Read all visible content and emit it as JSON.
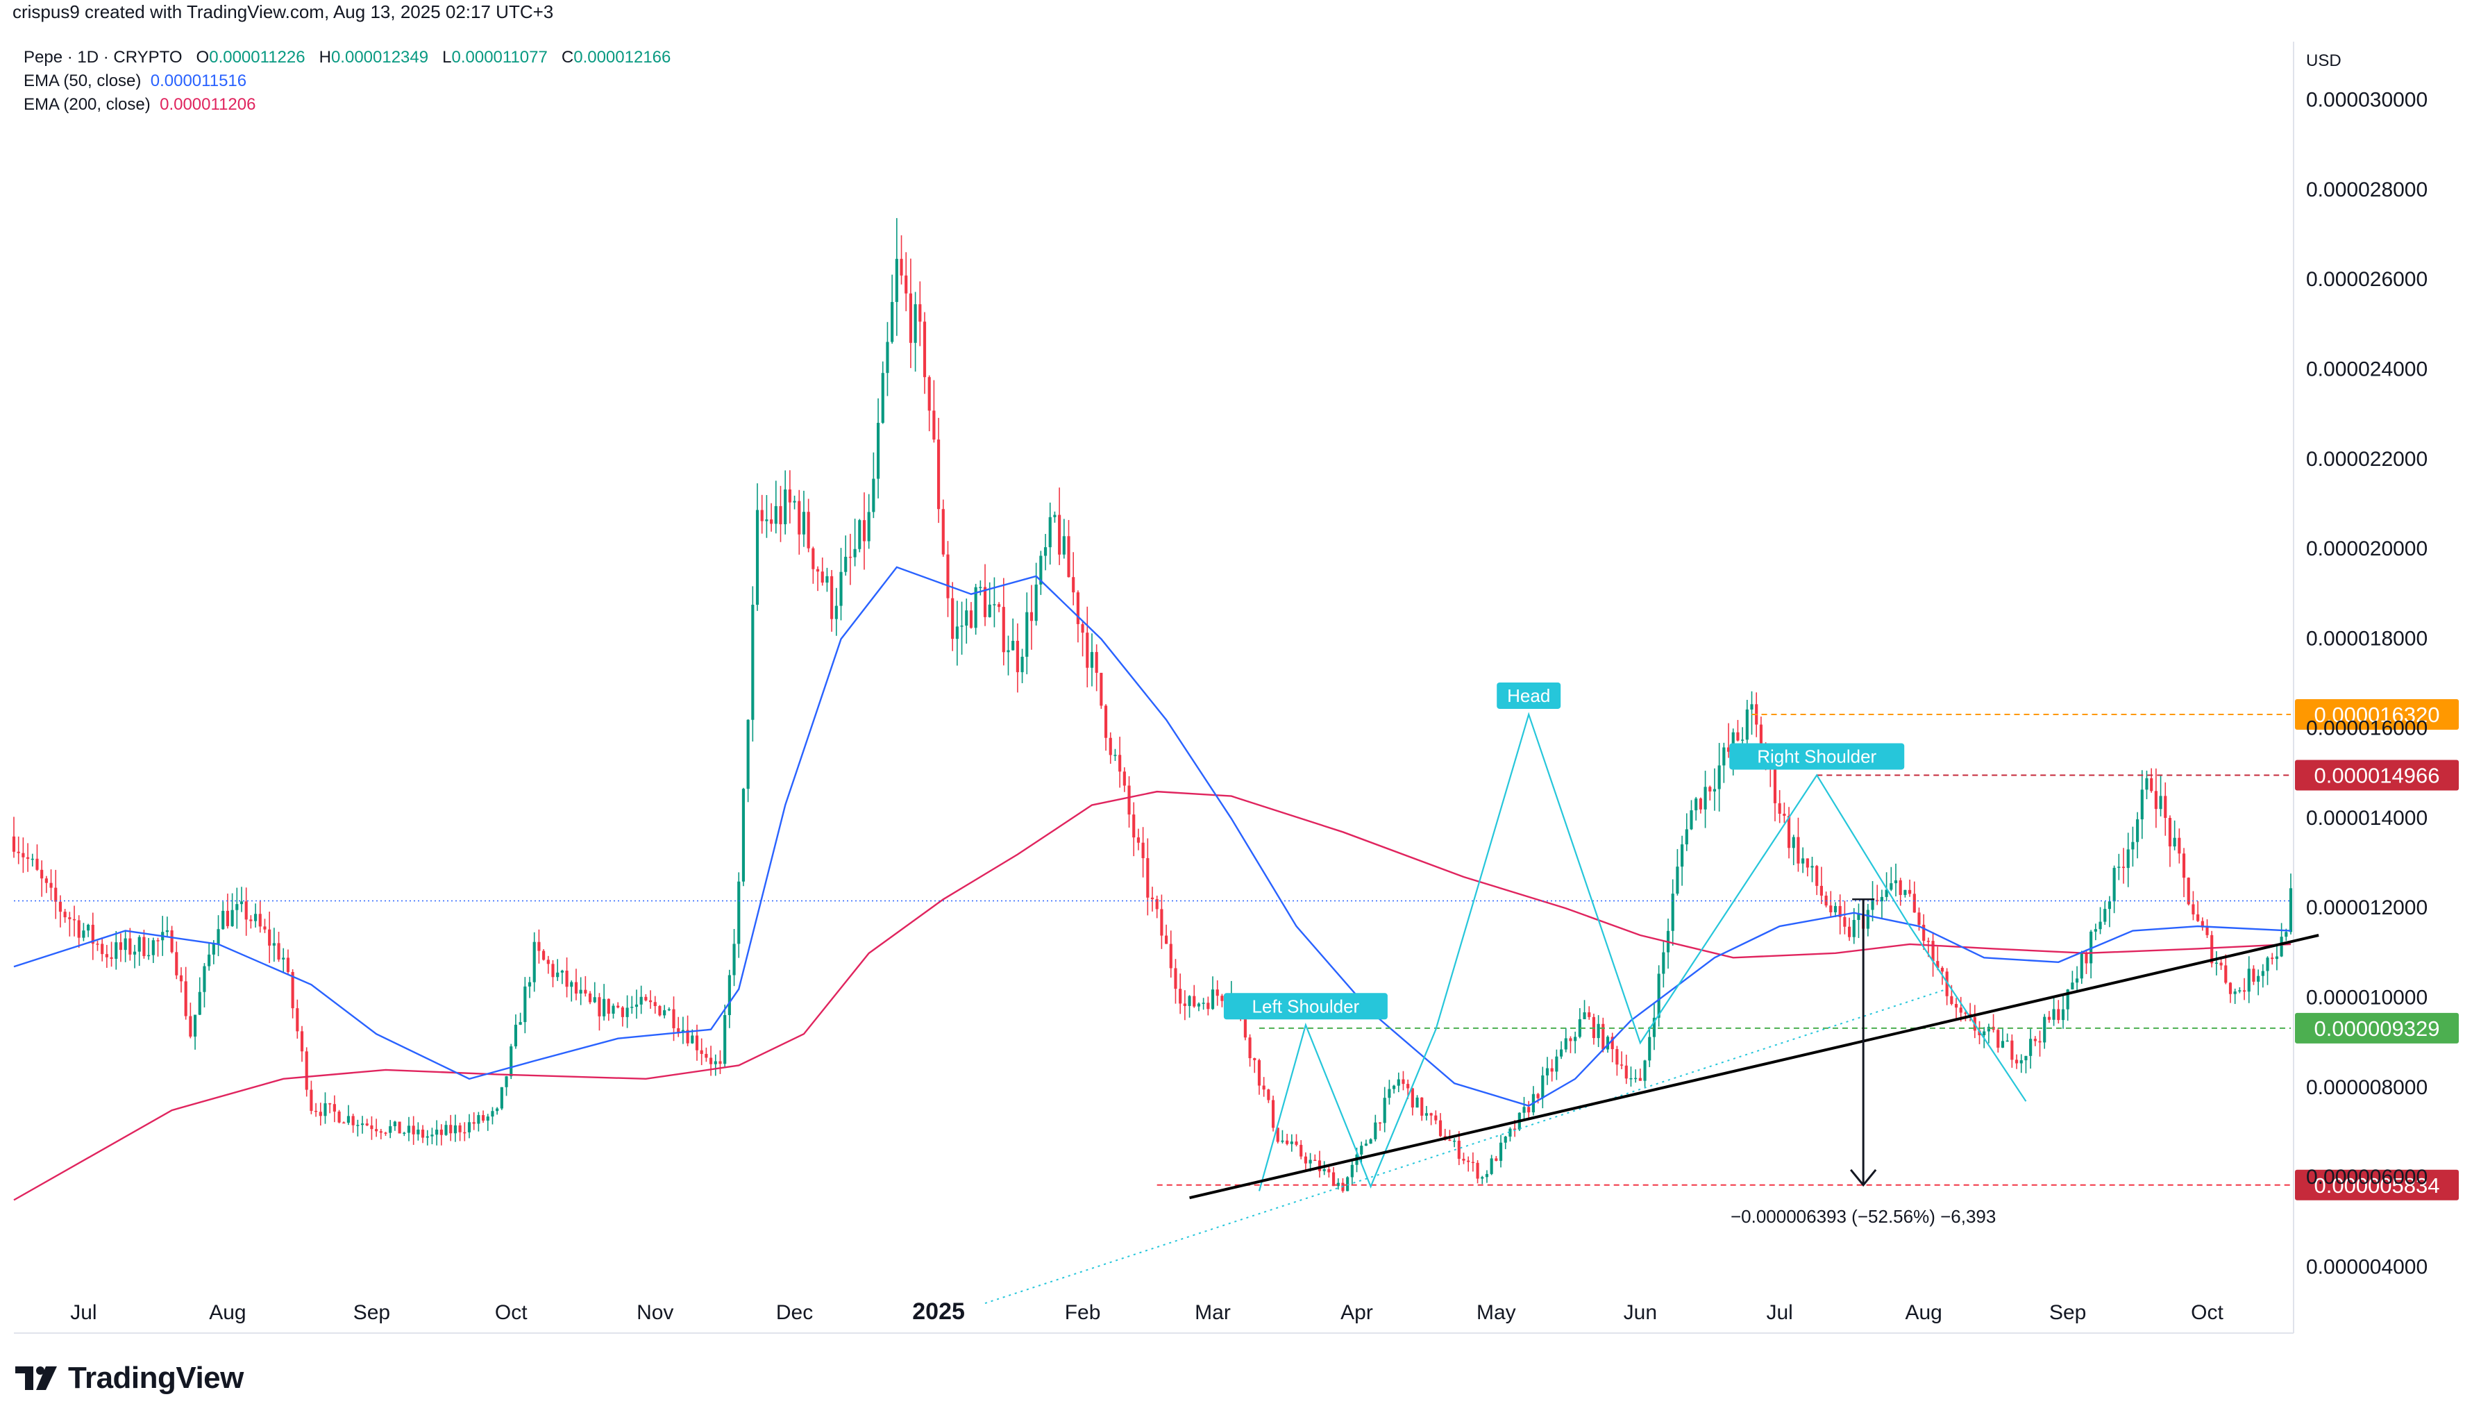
{
  "header": {
    "attribution": "crispus9 created with TradingView.com, Aug 13, 2025 02:17 UTC+3"
  },
  "legend": {
    "symbol": "Pepe · 1D · CRYPTO",
    "o_label": "O",
    "o_value": "0.000011226",
    "h_label": "H",
    "h_value": "0.000012349",
    "l_label": "L",
    "l_value": "0.000011077",
    "c_label": "C",
    "c_value": "0.000012166",
    "ema50_label": "EMA (50, close)",
    "ema50_value": "0.000011516",
    "ema200_label": "EMA (200, close)",
    "ema200_value": "0.000011206"
  },
  "colors": {
    "up": "#089981",
    "down": "#f23645",
    "ema50": "#2962ff",
    "ema200": "#e0245e",
    "pattern": "#26c6da",
    "orange": "#ff9800",
    "red_label": "#c62a3b",
    "green_label": "#4caf50"
  },
  "chart_data": {
    "type": "candlestick",
    "title": "",
    "currency": "USD",
    "y_ticks": [
      "0.000030000",
      "0.000028000",
      "0.000026000",
      "0.000024000",
      "0.000022000",
      "0.000020000",
      "0.000018000",
      "0.000016000",
      "0.000014000",
      "0.000012000",
      "0.000010000",
      "0.000008000",
      "0.000006000",
      "0.000004000"
    ],
    "y_tick_values": [
      30,
      28,
      26,
      24,
      22,
      20,
      18,
      16,
      14,
      12,
      10,
      8,
      6,
      4
    ],
    "y_unit_scale": "1e-6",
    "ylim": [
      3.0,
      31.0
    ],
    "x_ticks": [
      "Jul",
      "Aug",
      "Sep",
      "Oct",
      "Nov",
      "Dec",
      "2025",
      "Feb",
      "Mar",
      "Apr",
      "May",
      "Jun",
      "Jul",
      "Aug",
      "Sep",
      "Oct"
    ],
    "x_tick_days": [
      15,
      46,
      77,
      107,
      138,
      168,
      199,
      230,
      258,
      289,
      319,
      350,
      380,
      411,
      442,
      472
    ],
    "xlim_days": [
      0,
      490
    ],
    "price_keypoints": [
      [
        0,
        13.6
      ],
      [
        8,
        12.2
      ],
      [
        20,
        11.0
      ],
      [
        34,
        11.3
      ],
      [
        38,
        9.2
      ],
      [
        44,
        11.8
      ],
      [
        50,
        11.9
      ],
      [
        58,
        10.9
      ],
      [
        64,
        7.6
      ],
      [
        76,
        7.2
      ],
      [
        90,
        6.9
      ],
      [
        104,
        7.4
      ],
      [
        112,
        11.0
      ],
      [
        124,
        9.8
      ],
      [
        140,
        9.8
      ],
      [
        152,
        8.4
      ],
      [
        156,
        12.4
      ],
      [
        160,
        20.5
      ],
      [
        168,
        21.0
      ],
      [
        176,
        18.8
      ],
      [
        184,
        20.6
      ],
      [
        190,
        26.2
      ],
      [
        196,
        24.2
      ],
      [
        202,
        18.0
      ],
      [
        208,
        19.0
      ],
      [
        216,
        17.6
      ],
      [
        224,
        20.6
      ],
      [
        230,
        18.2
      ],
      [
        244,
        12.4
      ],
      [
        252,
        9.8
      ],
      [
        262,
        10.2
      ],
      [
        272,
        6.9
      ],
      [
        286,
        5.8
      ],
      [
        298,
        8.2
      ],
      [
        302,
        7.6
      ],
      [
        316,
        6.0
      ],
      [
        326,
        7.6
      ],
      [
        338,
        9.6
      ],
      [
        350,
        8.0
      ],
      [
        360,
        14.0
      ],
      [
        374,
        16.3
      ],
      [
        382,
        13.6
      ],
      [
        394,
        11.4
      ],
      [
        406,
        12.6
      ],
      [
        418,
        9.6
      ],
      [
        432,
        8.7
      ],
      [
        442,
        10.0
      ],
      [
        452,
        12.6
      ],
      [
        460,
        14.9
      ],
      [
        470,
        11.6
      ],
      [
        478,
        10.1
      ],
      [
        488,
        11.2
      ],
      [
        490,
        12.2
      ]
    ],
    "ema50_points": [
      [
        0,
        10.7
      ],
      [
        24,
        11.5
      ],
      [
        44,
        11.2
      ],
      [
        64,
        10.3
      ],
      [
        78,
        9.2
      ],
      [
        98,
        8.2
      ],
      [
        112,
        8.6
      ],
      [
        130,
        9.1
      ],
      [
        150,
        9.3
      ],
      [
        156,
        10.2
      ],
      [
        166,
        14.3
      ],
      [
        178,
        18.0
      ],
      [
        190,
        19.6
      ],
      [
        206,
        19.0
      ],
      [
        220,
        19.4
      ],
      [
        234,
        18.0
      ],
      [
        248,
        16.2
      ],
      [
        262,
        14.0
      ],
      [
        276,
        11.6
      ],
      [
        292,
        9.7
      ],
      [
        310,
        8.1
      ],
      [
        326,
        7.6
      ],
      [
        336,
        8.2
      ],
      [
        348,
        9.5
      ],
      [
        366,
        10.9
      ],
      [
        380,
        11.6
      ],
      [
        396,
        11.9
      ],
      [
        410,
        11.6
      ],
      [
        424,
        10.9
      ],
      [
        440,
        10.8
      ],
      [
        456,
        11.5
      ],
      [
        470,
        11.6
      ],
      [
        490,
        11.5
      ]
    ],
    "ema200_points": [
      [
        0,
        5.5
      ],
      [
        34,
        7.5
      ],
      [
        58,
        8.2
      ],
      [
        80,
        8.4
      ],
      [
        104,
        8.3
      ],
      [
        136,
        8.2
      ],
      [
        156,
        8.5
      ],
      [
        170,
        9.2
      ],
      [
        184,
        11.0
      ],
      [
        200,
        12.2
      ],
      [
        216,
        13.2
      ],
      [
        232,
        14.3
      ],
      [
        246,
        14.6
      ],
      [
        262,
        14.5
      ],
      [
        286,
        13.7
      ],
      [
        312,
        12.7
      ],
      [
        334,
        12.0
      ],
      [
        350,
        11.4
      ],
      [
        370,
        10.9
      ],
      [
        392,
        11.0
      ],
      [
        408,
        11.2
      ],
      [
        426,
        11.1
      ],
      [
        446,
        11.0
      ],
      [
        470,
        11.1
      ],
      [
        490,
        11.2
      ]
    ],
    "annotations": {
      "head_label": "Head",
      "left_shoulder_label": "Left Shoulder",
      "right_shoulder_label": "Right Shoulder",
      "level_16320": "0.000016320",
      "level_14966": "0.000014966",
      "level_9329": "0.000009329",
      "level_5834": "0.000005834",
      "current_price": "0.000012166",
      "measure_text": "−0.000006393 (−52.56%) −6,393",
      "level_values": [
        16.32,
        14.966,
        9.329,
        5.834
      ],
      "current_value": 12.166,
      "neckline_from": [
        253,
        5.55
      ],
      "neckline_to": [
        496,
        11.4
      ],
      "pattern_points": [
        [
          268,
          5.7
        ],
        [
          278,
          9.4
        ],
        [
          292,
          5.8
        ],
        [
          306,
          9.3
        ],
        [
          326,
          16.32
        ],
        [
          350,
          9.0
        ],
        [
          388,
          14.966
        ],
        [
          408,
          11.6
        ],
        [
          433,
          7.7
        ]
      ],
      "dotted_trend_from": [
        209,
        3.2
      ],
      "dotted_trend_to": [
        416,
        10.2
      ],
      "measure_from": [
        398,
        12.2
      ],
      "measure_to": [
        398,
        5.834
      ]
    }
  },
  "footer": {
    "brand": "TradingView"
  }
}
